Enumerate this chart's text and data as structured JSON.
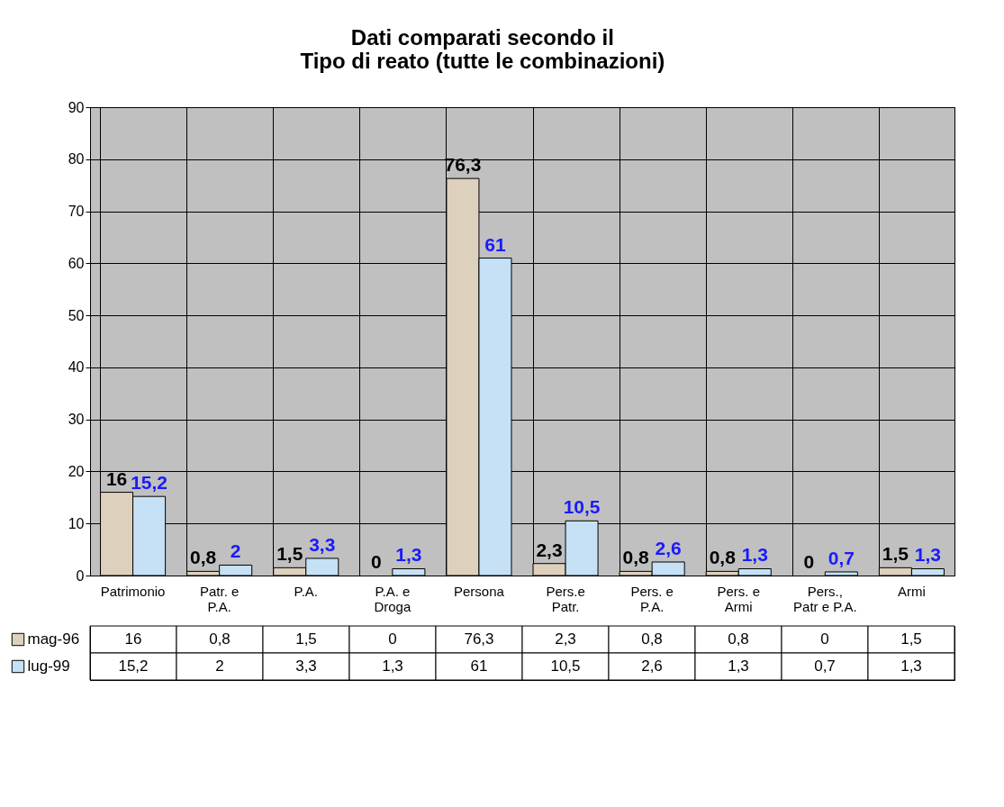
{
  "chart_data": {
    "type": "bar",
    "title": "Dati comparati secondo il\nTipo di reato (tutte le combinazioni)",
    "categories": [
      "Patrimonio",
      "Patr. e P.A.",
      "P.A.",
      "P.A. e Droga",
      "Persona",
      "Pers.e Patr.",
      "Pers. e P.A.",
      "Pers. e Armi",
      "Pers., Patr e P.A.",
      "Armi"
    ],
    "series": [
      {
        "name": "mag-96",
        "color": "#ddd0bd",
        "values": [
          16,
          0.8,
          1.5,
          0,
          76.3,
          2.3,
          0.8,
          0.8,
          0,
          1.5
        ],
        "value_labels": [
          "16",
          "0,8",
          "1,5",
          "0",
          "76,3",
          "2,3",
          "0,8",
          "0,8",
          "0",
          "1,5"
        ]
      },
      {
        "name": "lug-99",
        "color": "#c6e0f5",
        "values": [
          15.2,
          2,
          3.3,
          1.3,
          61,
          10.5,
          2.6,
          1.3,
          0.7,
          1.3
        ],
        "value_labels": [
          "15,2",
          "2",
          "3,3",
          "1,3",
          "61",
          "10,5",
          "2,6",
          "1,3",
          "0,7",
          "1,3"
        ]
      }
    ],
    "ylim": [
      0,
      90
    ],
    "yticks": [
      0,
      10,
      20,
      30,
      40,
      50,
      60,
      70,
      80,
      90
    ],
    "grid": true,
    "legend": "left"
  }
}
